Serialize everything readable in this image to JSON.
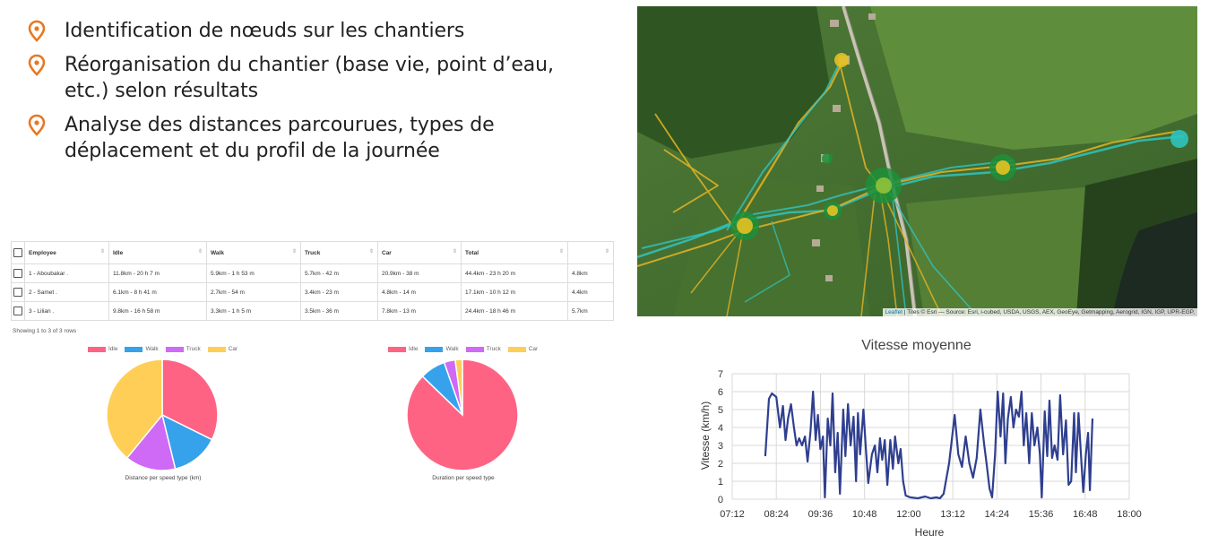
{
  "bullets": [
    {
      "text": "Identification de nœuds sur les chantiers"
    },
    {
      "text": "Réorganisation du chantier (base vie, point d’eau, etc.) selon résultats"
    },
    {
      "text": "Analyse des distances parcourues, types de déplacement et du profil de la journée"
    }
  ],
  "colors": {
    "accent": "#E87722",
    "idle": "#FF6384",
    "walk": "#36A2EB",
    "truck": "#CE6AF5",
    "car": "#FFCE56",
    "line": "#2F3F8F"
  },
  "table": {
    "headers": [
      "Employee",
      "Idle",
      "Walk",
      "Truck",
      "Car",
      "Total",
      ""
    ],
    "rows": [
      [
        "1 - Aboubakar .",
        "11.8km - 20 h 7 m",
        "5.9km - 1 h 53 m",
        "5.7km - 42 m",
        "20.9km - 38 m",
        "44.4km - 23 h 20 m",
        "4.8km"
      ],
      [
        "2 - Samet .",
        "6.1km - 8 h 41 m",
        "2.7km - 54 m",
        "3.4km - 23 m",
        "4.8km - 14 m",
        "17.1km - 10 h 12 m",
        "4.4km"
      ],
      [
        "3 - Lilian .",
        "9.8km - 16 h 58 m",
        "3.3km - 1 h 5 m",
        "3.5km - 36 m",
        "7.8km - 13 m",
        "24.4km - 18 h 46 m",
        "5.7km"
      ]
    ],
    "showing": "Showing 1 to 3 of 3 rows"
  },
  "map": {
    "attribution_leaflet": "Leaflet",
    "attribution_rest": " | Tiles © Esri — Source: Esri, i-cubed, USDA, USGS, AEX, GeoEye, Getmapping, Aerogrid, IGN, IGP, UPR-EGP,"
  },
  "chart_data": [
    {
      "type": "pie",
      "legend": [
        "Idle",
        "Walk",
        "Truck",
        "Car"
      ],
      "values": [
        27.7,
        11.9,
        12.6,
        33.5
      ],
      "caption": "Distance per speed type (km)"
    },
    {
      "type": "pie",
      "legend": [
        "Idle",
        "Walk",
        "Truck",
        "Car"
      ],
      "values": [
        45.8,
        3.9,
        1.7,
        1.1
      ],
      "caption": "Duration per speed type"
    },
    {
      "type": "line",
      "title": "Vitesse moyenne",
      "xlabel": "Heure",
      "ylabel": "Vitesse (km/h)",
      "xticks": [
        "07:12",
        "08:24",
        "09:36",
        "10:48",
        "12:00",
        "13:12",
        "14:24",
        "15:36",
        "16:48",
        "18:00"
      ],
      "xlim_hours": [
        7.2,
        18.0
      ],
      "ylim": [
        0,
        7
      ],
      "yticks": [
        0,
        1,
        2,
        3,
        4,
        5,
        6,
        7
      ],
      "grid": true,
      "points": [
        [
          8.1,
          2.4
        ],
        [
          8.2,
          5.6
        ],
        [
          8.28,
          5.9
        ],
        [
          8.4,
          5.7
        ],
        [
          8.5,
          4.0
        ],
        [
          8.58,
          5.2
        ],
        [
          8.65,
          3.3
        ],
        [
          8.72,
          4.5
        ],
        [
          8.8,
          5.3
        ],
        [
          8.88,
          4.0
        ],
        [
          8.95,
          3.0
        ],
        [
          9.02,
          3.4
        ],
        [
          9.1,
          3.0
        ],
        [
          9.18,
          3.5
        ],
        [
          9.25,
          2.1
        ],
        [
          9.33,
          3.8
        ],
        [
          9.4,
          6.0
        ],
        [
          9.47,
          3.3
        ],
        [
          9.53,
          4.7
        ],
        [
          9.6,
          2.8
        ],
        [
          9.67,
          3.5
        ],
        [
          9.72,
          0.1
        ],
        [
          9.8,
          4.5
        ],
        [
          9.87,
          3.0
        ],
        [
          9.93,
          5.9
        ],
        [
          10.0,
          1.5
        ],
        [
          10.07,
          3.7
        ],
        [
          10.13,
          0.3
        ],
        [
          10.22,
          5.0
        ],
        [
          10.28,
          2.4
        ],
        [
          10.35,
          5.3
        ],
        [
          10.42,
          3.0
        ],
        [
          10.5,
          4.6
        ],
        [
          10.57,
          1.0
        ],
        [
          10.62,
          4.8
        ],
        [
          10.68,
          2.5
        ],
        [
          10.77,
          5.0
        ],
        [
          10.83,
          3.0
        ],
        [
          10.9,
          0.9
        ],
        [
          11.0,
          2.5
        ],
        [
          11.08,
          3.0
        ],
        [
          11.15,
          1.5
        ],
        [
          11.22,
          3.4
        ],
        [
          11.28,
          2.2
        ],
        [
          11.35,
          3.3
        ],
        [
          11.42,
          0.8
        ],
        [
          11.5,
          3.3
        ],
        [
          11.57,
          1.7
        ],
        [
          11.63,
          3.5
        ],
        [
          11.72,
          2.0
        ],
        [
          11.78,
          2.8
        ],
        [
          11.85,
          1.0
        ],
        [
          11.92,
          0.2
        ],
        [
          12.05,
          0.1
        ],
        [
          12.25,
          0.05
        ],
        [
          12.45,
          0.15
        ],
        [
          12.6,
          0.05
        ],
        [
          12.75,
          0.1
        ],
        [
          12.85,
          0.05
        ],
        [
          12.95,
          0.3
        ],
        [
          13.1,
          2.0
        ],
        [
          13.25,
          4.7
        ],
        [
          13.35,
          2.5
        ],
        [
          13.45,
          1.8
        ],
        [
          13.55,
          3.5
        ],
        [
          13.65,
          2.0
        ],
        [
          13.75,
          1.2
        ],
        [
          13.85,
          2.3
        ],
        [
          13.95,
          5.0
        ],
        [
          14.05,
          3.1
        ],
        [
          14.12,
          2.0
        ],
        [
          14.2,
          0.6
        ],
        [
          14.27,
          0.1
        ],
        [
          14.35,
          2.5
        ],
        [
          14.42,
          6.0
        ],
        [
          14.5,
          3.5
        ],
        [
          14.57,
          5.9
        ],
        [
          14.63,
          2.0
        ],
        [
          14.7,
          4.5
        ],
        [
          14.78,
          5.7
        ],
        [
          14.85,
          4.0
        ],
        [
          14.92,
          5.0
        ],
        [
          15.0,
          4.6
        ],
        [
          15.07,
          6.0
        ],
        [
          15.13,
          3.0
        ],
        [
          15.2,
          4.8
        ],
        [
          15.28,
          2.0
        ],
        [
          15.35,
          4.8
        ],
        [
          15.42,
          3.0
        ],
        [
          15.5,
          4.0
        ],
        [
          15.57,
          2.5
        ],
        [
          15.62,
          0.1
        ],
        [
          15.7,
          4.9
        ],
        [
          15.77,
          2.4
        ],
        [
          15.83,
          5.5
        ],
        [
          15.9,
          2.3
        ],
        [
          15.97,
          3.0
        ],
        [
          16.05,
          2.2
        ],
        [
          16.12,
          5.8
        ],
        [
          16.2,
          2.5
        ],
        [
          16.28,
          4.4
        ],
        [
          16.35,
          0.8
        ],
        [
          16.42,
          1.0
        ],
        [
          16.5,
          4.8
        ],
        [
          16.55,
          1.5
        ],
        [
          16.62,
          4.8
        ],
        [
          16.7,
          2.0
        ],
        [
          16.75,
          0.4
        ],
        [
          16.82,
          2.5
        ],
        [
          16.88,
          3.7
        ],
        [
          16.93,
          0.5
        ],
        [
          17.0,
          4.5
        ]
      ]
    }
  ]
}
